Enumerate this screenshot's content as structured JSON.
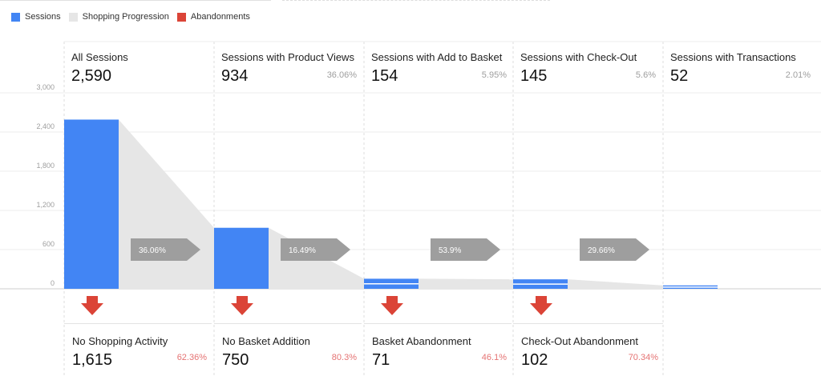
{
  "legend": {
    "items": [
      {
        "label": "Sessions",
        "color": "#4285f4"
      },
      {
        "label": "Shopping Progression",
        "color": "#e6e6e6"
      },
      {
        "label": "Abandonments",
        "color": "#db4437"
      }
    ]
  },
  "stages": [
    {
      "label": "All Sessions",
      "value": "2,590",
      "pct": ""
    },
    {
      "label": "Sessions with Product Views",
      "value": "934",
      "pct": "36.06%"
    },
    {
      "label": "Sessions with Add to Basket",
      "value": "154",
      "pct": "5.95%"
    },
    {
      "label": "Sessions with Check-Out",
      "value": "145",
      "pct": "5.6%"
    },
    {
      "label": "Sessions with Transactions",
      "value": "52",
      "pct": "2.01%"
    }
  ],
  "abandonments": [
    {
      "label": "No Shopping Activity",
      "value": "1,615",
      "pct": "62.36%"
    },
    {
      "label": "No Basket Addition",
      "value": "750",
      "pct": "80.3%"
    },
    {
      "label": "Basket Abandonment",
      "value": "71",
      "pct": "46.1%"
    },
    {
      "label": "Check-Out Abandonment",
      "value": "102",
      "pct": "70.34%"
    }
  ],
  "chart_data": {
    "type": "bar",
    "categories": [
      "All Sessions",
      "Sessions with Product Views",
      "Sessions with Add to Basket",
      "Sessions with Check-Out",
      "Sessions with Transactions"
    ],
    "values": [
      2590,
      934,
      154,
      145,
      52
    ],
    "ylim": [
      0,
      3000
    ],
    "yticks": [
      0,
      600,
      1200,
      1800,
      2400,
      3000
    ],
    "ytick_labels": [
      "0",
      "600",
      "1,200",
      "1,800",
      "2,400",
      "3,000"
    ],
    "progression_rates": [
      "36.06%",
      "16.49%",
      "53.9%",
      "29.66%"
    ],
    "colors": {
      "sessions": "#4285f4",
      "progression": "#e6e6e6",
      "abandonment": "#db4437",
      "rate_arrow": "#9e9e9e"
    },
    "grid": true
  }
}
